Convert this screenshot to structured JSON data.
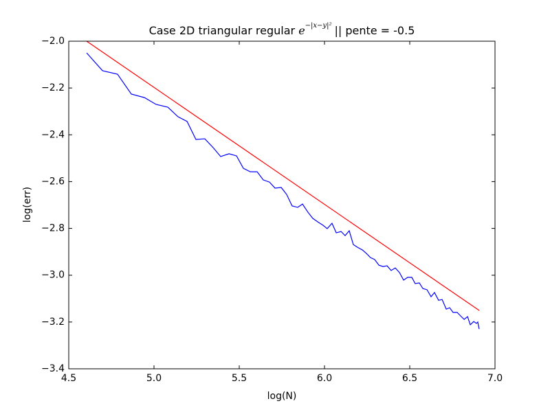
{
  "chart_data": {
    "type": "line",
    "title": "Case 2D triangular regular",
    "title_math_base": "e",
    "title_math_exponent": "−|x−y|²",
    "title_suffix": "|| pente = -0.5",
    "xlabel": "log(N)",
    "ylabel": "log(err)",
    "xlim": [
      4.5,
      7.0
    ],
    "ylim": [
      -3.4,
      -2.0
    ],
    "xticks": [
      4.5,
      {
        "value": 5.0,
        "label": "5.0"
      },
      5.5,
      {
        "value": 6.0,
        "label": "6.0"
      },
      6.5,
      {
        "value": 7.0,
        "label": "7.0"
      }
    ],
    "yticks": [
      {
        "value": -3.4,
        "label": "−3.4"
      },
      {
        "value": -3.2,
        "label": "−3.2"
      },
      {
        "value": -3.0,
        "label": "−3.0"
      },
      {
        "value": -2.8,
        "label": "−2.8"
      },
      {
        "value": -2.6,
        "label": "−2.6"
      },
      {
        "value": -2.4,
        "label": "−2.4"
      },
      {
        "value": -2.2,
        "label": "−2.2"
      },
      {
        "value": -2.0,
        "label": "−2.0"
      }
    ],
    "series": [
      {
        "color": "#ff0000",
        "x": [
          4.605,
          6.908
        ],
        "values": [
          -2.0,
          -3.151
        ]
      },
      {
        "color": "#0000ff",
        "x": [
          4.605,
          4.698,
          4.786,
          4.867,
          4.944,
          5.012,
          5.081,
          5.141,
          5.194,
          5.246,
          5.298,
          5.347,
          5.391,
          5.44,
          5.484,
          5.524,
          5.565,
          5.605,
          5.641,
          5.677,
          5.71,
          5.746,
          5.778,
          5.81,
          5.843,
          5.871,
          5.903,
          5.931,
          5.96,
          5.992,
          6.016,
          6.044,
          6.069,
          6.097,
          6.121,
          6.145,
          6.169,
          6.194,
          6.222,
          6.246,
          6.27,
          6.294,
          6.319,
          6.343,
          6.367,
          6.391,
          6.415,
          6.44,
          6.464,
          6.488,
          6.512,
          6.532,
          6.556,
          6.577,
          6.601,
          6.625,
          6.645,
          6.669,
          6.69,
          6.714,
          6.734,
          6.754,
          6.778,
          6.798,
          6.819,
          6.839,
          6.855,
          6.875,
          6.891,
          6.899,
          6.907
        ],
        "values": [
          -2.05,
          -2.126,
          -2.141,
          -2.226,
          -2.241,
          -2.27,
          -2.282,
          -2.323,
          -2.343,
          -2.42,
          -2.417,
          -2.455,
          -2.493,
          -2.481,
          -2.49,
          -2.543,
          -2.558,
          -2.558,
          -2.593,
          -2.602,
          -2.628,
          -2.625,
          -2.655,
          -2.704,
          -2.71,
          -2.696,
          -2.731,
          -2.757,
          -2.772,
          -2.787,
          -2.801,
          -2.778,
          -2.819,
          -2.813,
          -2.831,
          -2.81,
          -2.869,
          -2.881,
          -2.892,
          -2.907,
          -2.925,
          -2.933,
          -2.957,
          -2.963,
          -2.96,
          -2.98,
          -2.969,
          -2.989,
          -3.021,
          -3.009,
          -3.009,
          -3.036,
          -3.033,
          -3.057,
          -3.062,
          -3.092,
          -3.074,
          -3.107,
          -3.104,
          -3.145,
          -3.139,
          -3.159,
          -3.159,
          -3.174,
          -3.189,
          -3.177,
          -3.212,
          -3.198,
          -3.206,
          -3.2,
          -3.23
        ]
      }
    ]
  }
}
